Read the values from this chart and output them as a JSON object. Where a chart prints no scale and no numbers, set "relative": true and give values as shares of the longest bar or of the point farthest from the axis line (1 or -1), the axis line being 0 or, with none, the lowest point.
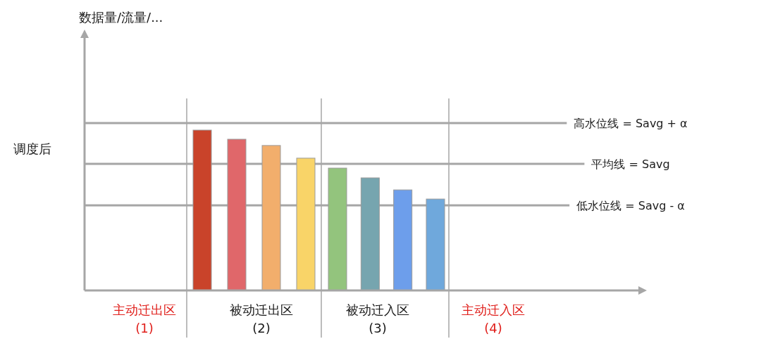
{
  "chart_data": {
    "type": "bar",
    "relative": true,
    "title": "调度后",
    "categories": [
      null,
      null,
      null,
      null,
      null,
      null,
      null,
      null
    ],
    "values": [
      1,
      0.943,
      0.904,
      0.825,
      0.763,
      0.702,
      0.627,
      0.57
    ],
    "colors": [
      "#c9432a",
      "#e0676a",
      "#f2ae6c",
      "#f9d468",
      "#93c47d",
      "#76a5af",
      "#6d9eeb",
      "#6fa8dc"
    ],
    "ref_lines": [
      {
        "axis": "y",
        "value": 1.044,
        "label": "高水位线 = Savg + α",
        "color": "#a6a6a6",
        "line_style": "solid"
      },
      {
        "axis": "y",
        "value": 0.789,
        "label": "平均线 = Savg",
        "color": "#a6a6a6",
        "line_style": "solid"
      },
      {
        "axis": "y",
        "value": 0.531,
        "label": "低水位线 = Savg - α",
        "color": "#a6a6a6",
        "line_style": "solid"
      }
    ],
    "annotations": [
      "数据量/流量/...",
      "主动迁出区\n(1)",
      "被动迁出区\n(2)",
      "被动迁入区\n(3)",
      "主动迁入区\n(4)"
    ]
  }
}
